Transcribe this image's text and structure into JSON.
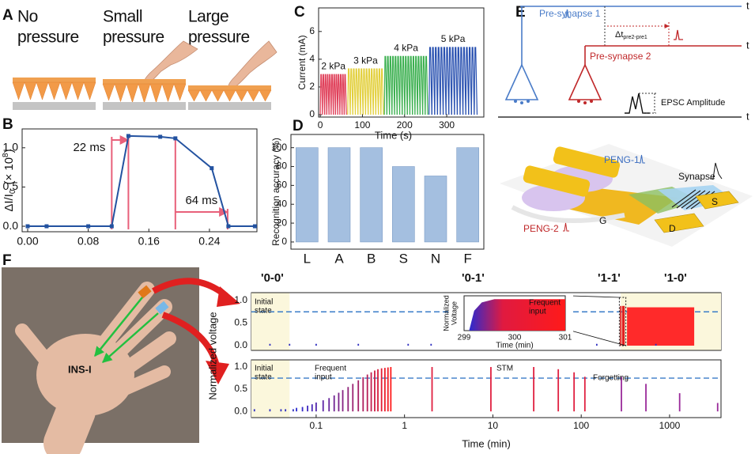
{
  "panel_labels": [
    "A",
    "B",
    "C",
    "D",
    "E",
    "F"
  ],
  "panel_a": {
    "captions": [
      [
        "No",
        "pressure"
      ],
      [
        "Small",
        "pressure"
      ],
      [
        "Large",
        "pressure"
      ]
    ]
  },
  "chart_data": [
    {
      "type": "line",
      "color": "#2352a0",
      "x": [
        0,
        0.025,
        0.08,
        0.111,
        0.133,
        0.175,
        0.195,
        0.243,
        0.265,
        0.3
      ],
      "values": [
        0,
        0,
        0,
        0,
        1.15,
        1.14,
        1.12,
        0.74,
        0,
        0
      ],
      "xlim": [
        -0.0073,
        0.3027
      ],
      "ylim": [
        -0.07,
        1.24
      ],
      "xticks": [
        {
          "value": 0,
          "label": "0.00"
        },
        0.08,
        0.16,
        0.24
      ],
      "yticks": [
        {
          "value": 0,
          "label": "0.0"
        },
        0.5,
        {
          "value": 1,
          "label": "1.0"
        }
      ],
      "y_label_parts": [
        "ΔI/I",
        "0",
        "(× 10",
        "8",
        ")"
      ],
      "span_color": "#e8607a",
      "spans": [
        {
          "label": "22 ms",
          "start": 0.111,
          "end": 0.133
        },
        {
          "label": "64 ms",
          "start": 0.195,
          "end": 0.264
        }
      ]
    },
    {
      "type": "oscillation",
      "x_label": "Time (s)",
      "y_label": "Current (mA)",
      "xlim": [
        -4,
        388
      ],
      "ylim": [
        -0.17,
        7.7
      ],
      "xticks": [
        0,
        100,
        200,
        300
      ],
      "yticks": [
        0,
        2,
        4,
        6
      ],
      "series": [
        {
          "name": "2 kPa",
          "color": "#e0405a",
          "range": [
            0,
            62
          ],
          "values": [
            2.9,
            2.9,
            2.9,
            2.9,
            2.9,
            2.9,
            2.9,
            2.9,
            2.9,
            2.9,
            2.9,
            2.9
          ]
        },
        {
          "name": "3 kPa",
          "color": "#e2cf3a",
          "range": [
            65,
            150
          ],
          "values": [
            3.3,
            3.3,
            3.3,
            3.3,
            3.3,
            3.3,
            3.3,
            3.3,
            3.3,
            3.3,
            3.3,
            3.3,
            3.3,
            3.3
          ]
        },
        {
          "name": "4 kPa",
          "color": "#3cb050",
          "range": [
            152,
            255
          ],
          "values": [
            4.2,
            4.2,
            4.2,
            4.2,
            4.2,
            4.2,
            4.2,
            4.2,
            4.2,
            4.2,
            4.2,
            4.2,
            4.2,
            4.2,
            4.2,
            4.2,
            4.2
          ]
        },
        {
          "name": "5 kPa",
          "color": "#2850b0",
          "range": [
            258,
            372
          ],
          "values": [
            4.85,
            4.85,
            4.85,
            4.85,
            4.85,
            4.85,
            4.85,
            4.85,
            4.85,
            4.85,
            4.85,
            4.85,
            4.85,
            4.85,
            4.85,
            4.85,
            4.85
          ]
        }
      ]
    },
    {
      "type": "bar",
      "y_label": "Recognition accuracy (%)",
      "color": "#a4bfe0",
      "categories": [
        "L",
        "A",
        "B",
        "S",
        "N",
        "F"
      ],
      "values": [
        100,
        100,
        100,
        80,
        70,
        100
      ],
      "ylim": [
        -7.6,
        114
      ],
      "yticks": [
        0,
        20,
        40,
        60,
        80,
        100
      ]
    },
    {
      "type": "spikes",
      "xlog": true,
      "xlim": [
        0.0185,
        3820
      ],
      "ylim": [
        -0.105,
        1.175
      ],
      "yticks": [
        {
          "value": 0,
          "label": "0.0"
        },
        0.5,
        {
          "value": 1,
          "label": "1.0"
        }
      ],
      "threshold": 0.75,
      "shaded": [
        [
          0.0185,
          0.05
        ],
        [
          280,
          3820
        ]
      ],
      "series": [
        {
          "color": "#3030c0",
          "x": [
            0.03,
            0.05,
            0.1,
            0.3,
            1.1,
            2,
            10,
            30,
            150,
            700
          ],
          "values": [
            0.04,
            0.04,
            0.04,
            0.04,
            0.04,
            0.04,
            0.04,
            0.04,
            0.04,
            0.04
          ]
        },
        {
          "color": "#e02020",
          "x": [
            280,
            295,
            305
          ],
          "values": [
            0.88,
            0.88,
            0.88
          ]
        }
      ],
      "blocks": [
        {
          "color": "#ff2a2a",
          "start": 330,
          "end": 1900,
          "value": 0.85
        }
      ],
      "inset_source": [
        270,
        320
      ]
    },
    {
      "type": "area",
      "xlim": [
        299,
        301
      ],
      "ylim": [
        0,
        1.05
      ],
      "xticks": [
        299,
        300,
        301
      ],
      "x": [
        299.1,
        299.2,
        299.35,
        299.6,
        301
      ],
      "values": [
        0,
        0.6,
        0.85,
        0.95,
        0.95
      ],
      "color_from": "#2a2ad0",
      "color_to": "#ff1a1a",
      "y_label": [
        "Normalized",
        "Voltage"
      ],
      "x_label": "Time (min)",
      "annotation": [
        "Frequent",
        "input"
      ]
    },
    {
      "type": "spikes",
      "xlog": true,
      "xlim": [
        0.0185,
        3820
      ],
      "ylim": [
        -0.14,
        1.16
      ],
      "xticks": [
        0.1,
        1,
        10,
        100,
        1000
      ],
      "yticks": [
        {
          "value": 0,
          "label": "0.0"
        },
        0.5,
        {
          "value": 1,
          "label": "1.0"
        }
      ],
      "threshold": 0.75,
      "shaded": [
        [
          0.0185,
          0.05
        ]
      ],
      "series": [
        {
          "color": "#3030c0",
          "x": [
            0.02,
            0.03,
            0.04,
            0.045,
            0.055
          ],
          "values": [
            0.05,
            0.05,
            0.05,
            0.05,
            0.05
          ]
        },
        {
          "color_from": "#2a2ad0",
          "color_to": "#ff1a1a",
          "x": [
            0.06,
            0.07,
            0.08,
            0.09,
            0.1,
            0.12,
            0.14,
            0.16,
            0.18,
            0.2,
            0.23,
            0.26,
            0.3,
            0.34,
            0.38,
            0.42,
            0.46,
            0.5,
            0.55,
            0.6,
            0.65,
            0.7
          ],
          "values": [
            0.08,
            0.1,
            0.13,
            0.16,
            0.2,
            0.25,
            0.3,
            0.36,
            0.42,
            0.48,
            0.55,
            0.62,
            0.7,
            0.77,
            0.83,
            0.88,
            0.92,
            0.95,
            0.97,
            0.98,
            0.99,
            1.0
          ]
        },
        {
          "color": "#e02040",
          "x": [
            2.05,
            9.5,
            29,
            55,
            83,
            110
          ],
          "values": [
            1.0,
            1.0,
            1.0,
            0.95,
            0.88,
            0.78
          ]
        },
        {
          "color": "#9a2a9a",
          "x": [
            285,
            540,
            1300,
            3500
          ],
          "values": [
            0.78,
            0.62,
            0.41,
            0.19
          ]
        }
      ]
    }
  ],
  "panel_e": {
    "pre1": "Pre-synapse 1",
    "pre2": "Pre-synapse 2",
    "t": "t",
    "delta": "Δt",
    "delta_sub": "pre2-pre1",
    "epsc": "EPSC Amplitude",
    "peng1": "PENG-1",
    "peng2": "PENG-2",
    "synapse": "Synapse",
    "s": "S",
    "g": "G",
    "d": "D"
  },
  "panel_f": {
    "states": [
      "'0-0'",
      "'0-1'",
      "'1-1'",
      "'1-0'"
    ],
    "sensor": "INS-I",
    "y_label": "Normalized voltage",
    "x_label": "Time (min)",
    "initial": [
      "Initial",
      "state"
    ],
    "frequent": [
      "Frequent",
      "input"
    ],
    "stm": "STM",
    "forgetting": "Forgetting"
  }
}
